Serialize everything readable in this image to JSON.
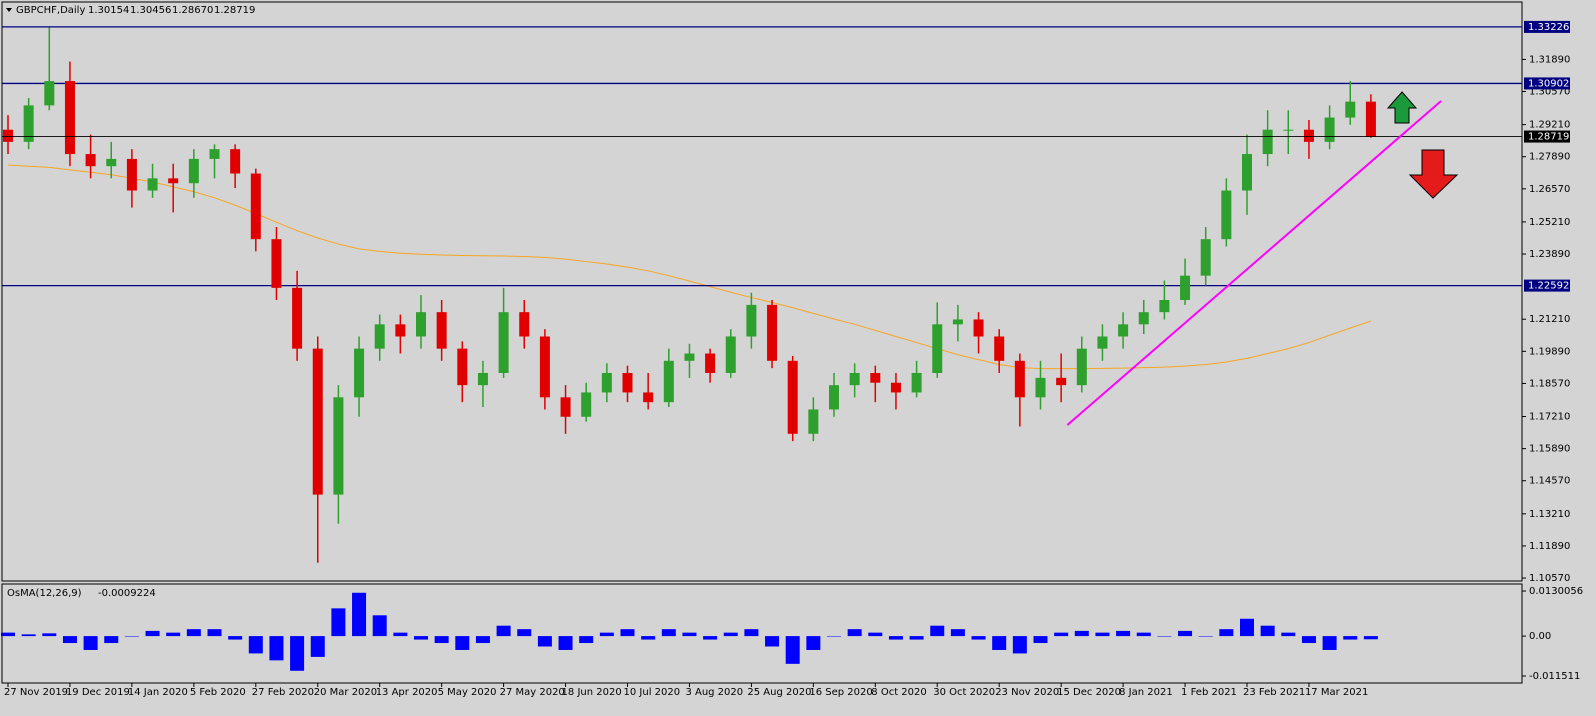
{
  "header": {
    "symbol": "GBPCHF,Daily",
    "ohlc": [
      "1.30154",
      "1.30456",
      "1.28670",
      "1.28719"
    ]
  },
  "chart_data": [
    {
      "type": "candlestick",
      "categories": [
        "27 Nov 2019",
        null,
        null,
        "19 Dec 2019",
        null,
        null,
        "14 Jan 2020",
        null,
        null,
        "5 Feb 2020",
        null,
        null,
        "27 Feb 2020",
        null,
        null,
        "20 Mar 2020",
        null,
        null,
        "13 Apr 2020",
        null,
        null,
        "5 May 2020",
        null,
        null,
        "27 May 2020",
        null,
        null,
        "18 Jun 2020",
        null,
        null,
        "10 Jul 2020",
        null,
        null,
        "3 Aug 2020",
        null,
        null,
        "25 Aug 2020",
        null,
        null,
        "16 Sep 2020",
        null,
        null,
        "8 Oct 2020",
        null,
        null,
        "30 Oct 2020",
        null,
        null,
        "23 Nov 2020",
        null,
        null,
        "15 Dec 2020",
        null,
        null,
        "8 Jan 2021",
        null,
        null,
        "1 Feb 2021",
        null,
        null,
        "23 Feb 2021",
        null,
        null,
        "17 Mar 2021",
        null,
        null,
        null
      ],
      "open": [
        1.29,
        1.285,
        1.3,
        1.31,
        1.28,
        1.275,
        1.278,
        1.265,
        1.27,
        1.268,
        1.278,
        1.282,
        1.272,
        1.245,
        1.225,
        1.2,
        1.14,
        1.18,
        1.2,
        1.21,
        1.205,
        1.215,
        1.2,
        1.185,
        1.19,
        1.215,
        1.205,
        1.18,
        1.172,
        1.182,
        1.19,
        1.182,
        1.178,
        1.195,
        1.198,
        1.19,
        1.205,
        1.218,
        1.195,
        1.165,
        1.175,
        1.185,
        1.19,
        1.186,
        1.182,
        1.19,
        1.21,
        1.212,
        1.205,
        1.195,
        1.18,
        1.188,
        1.185,
        1.2,
        1.205,
        1.21,
        1.215,
        1.22,
        1.23,
        1.245,
        1.265,
        1.28,
        1.29,
        1.29,
        1.285,
        1.295,
        1.30154
      ],
      "high": [
        1.296,
        1.303,
        1.332,
        1.318,
        1.288,
        1.285,
        1.282,
        1.276,
        1.276,
        1.282,
        1.284,
        1.284,
        1.274,
        1.25,
        1.232,
        1.205,
        1.185,
        1.205,
        1.214,
        1.214,
        1.222,
        1.22,
        1.203,
        1.195,
        1.225,
        1.22,
        1.208,
        1.185,
        1.186,
        1.194,
        1.193,
        1.19,
        1.2,
        1.202,
        1.2,
        1.208,
        1.223,
        1.22,
        1.197,
        1.18,
        1.19,
        1.194,
        1.193,
        1.19,
        1.195,
        1.219,
        1.218,
        1.215,
        1.208,
        1.198,
        1.195,
        1.198,
        1.205,
        1.21,
        1.215,
        1.22,
        1.228,
        1.237,
        1.25,
        1.27,
        1.288,
        1.298,
        1.298,
        1.294,
        1.3,
        1.31,
        1.30456
      ],
      "low": [
        1.28,
        1.282,
        1.298,
        1.275,
        1.27,
        1.27,
        1.258,
        1.262,
        1.256,
        1.262,
        1.27,
        1.266,
        1.24,
        1.22,
        1.195,
        1.112,
        1.128,
        1.172,
        1.195,
        1.198,
        1.2,
        1.195,
        1.178,
        1.176,
        1.188,
        1.2,
        1.175,
        1.165,
        1.17,
        1.178,
        1.178,
        1.175,
        1.176,
        1.188,
        1.186,
        1.188,
        1.2,
        1.192,
        1.162,
        1.162,
        1.172,
        1.18,
        1.178,
        1.175,
        1.18,
        1.188,
        1.203,
        1.198,
        1.19,
        1.168,
        1.175,
        1.178,
        1.182,
        1.195,
        1.2,
        1.206,
        1.212,
        1.218,
        1.226,
        1.242,
        1.255,
        1.275,
        1.28,
        1.278,
        1.282,
        1.292,
        1.2867
      ],
      "close": [
        1.285,
        1.3,
        1.31,
        1.28,
        1.275,
        1.278,
        1.265,
        1.27,
        1.268,
        1.278,
        1.282,
        1.272,
        1.245,
        1.225,
        1.2,
        1.14,
        1.18,
        1.2,
        1.21,
        1.205,
        1.215,
        1.2,
        1.185,
        1.19,
        1.215,
        1.205,
        1.18,
        1.172,
        1.182,
        1.19,
        1.182,
        1.178,
        1.195,
        1.198,
        1.19,
        1.205,
        1.218,
        1.195,
        1.165,
        1.175,
        1.185,
        1.19,
        1.186,
        1.182,
        1.19,
        1.21,
        1.212,
        1.205,
        1.195,
        1.18,
        1.188,
        1.185,
        1.2,
        1.205,
        1.21,
        1.215,
        1.22,
        1.23,
        1.245,
        1.265,
        1.28,
        1.29,
        1.29,
        1.285,
        1.295,
        1.30154,
        1.28719
      ],
      "up_color": "#2ea02e",
      "down_color": "#e00000",
      "ylim": [
        1.1049,
        1.3425
      ],
      "yticks": [
        {
          "value": 1.3189,
          "label": "1.31890"
        },
        {
          "value": 1.3057,
          "label": "1.30570"
        },
        {
          "value": 1.2921,
          "label": "1.29210"
        },
        {
          "value": 1.2789,
          "label": "1.27890"
        },
        {
          "value": 1.2657,
          "label": "1.26570"
        },
        {
          "value": 1.2521,
          "label": "1.25210"
        },
        {
          "value": 1.2389,
          "label": "1.23890"
        },
        {
          "value": 1.2121,
          "label": "1.21210"
        },
        {
          "value": 1.1989,
          "label": "1.19890"
        },
        {
          "value": 1.1857,
          "label": "1.18570"
        },
        {
          "value": 1.1721,
          "label": "1.17210"
        },
        {
          "value": 1.1589,
          "label": "1.15890"
        },
        {
          "value": 1.1457,
          "label": "1.14570"
        },
        {
          "value": 1.1321,
          "label": "1.13210"
        },
        {
          "value": 1.1189,
          "label": "1.11890"
        },
        {
          "value": 1.1057,
          "label": "1.10570"
        }
      ],
      "moving_average": {
        "color": "#f5a623",
        "values": [
          1.2755,
          1.275,
          1.2745,
          1.2735,
          1.2725,
          1.2715,
          1.27,
          1.2685,
          1.2665,
          1.2645,
          1.262,
          1.259,
          1.2555,
          1.252,
          1.2485,
          1.2455,
          1.243,
          1.241,
          1.24,
          1.2392,
          1.2388,
          1.2385,
          1.2383,
          1.2382,
          1.2381,
          1.2379,
          1.2375,
          1.2368,
          1.2358,
          1.2348,
          1.2335,
          1.232,
          1.23,
          1.2278,
          1.2255,
          1.2232,
          1.221,
          1.219,
          1.2168,
          1.2145,
          1.2122,
          1.21,
          1.2075,
          1.205,
          1.2025,
          1.2,
          1.1975,
          1.1955,
          1.1935,
          1.1922,
          1.1918,
          1.1918,
          1.1918,
          1.1919,
          1.192,
          1.1922,
          1.1924,
          1.1928,
          1.1935,
          1.1945,
          1.196,
          1.198,
          1.2,
          1.2025,
          1.2055,
          1.2085,
          1.2114
        ]
      },
      "levels": {
        "color": "#000080",
        "values": [
          1.33226,
          1.30902,
          1.22592
        ]
      },
      "current_color": "#000000",
      "trendline": {
        "color": "#ff00ff",
        "x": [
          51.3,
          69.4
        ],
        "y": [
          1.1686,
          1.3018
        ]
      }
    },
    {
      "type": "bar",
      "title": "OsMA(12,26,9)",
      "color": "#0000ff",
      "values": [
        0.001,
        0.0005,
        0.0008,
        -0.002,
        -0.004,
        -0.002,
        0.0,
        0.0015,
        0.001,
        0.002,
        0.002,
        -0.001,
        -0.005,
        -0.007,
        -0.01,
        -0.006,
        0.008,
        0.0125,
        0.006,
        0.001,
        -0.001,
        -0.002,
        -0.004,
        -0.002,
        0.003,
        0.002,
        -0.003,
        -0.004,
        -0.002,
        0.001,
        0.002,
        -0.001,
        0.002,
        0.001,
        -0.001,
        0.001,
        0.002,
        -0.003,
        -0.008,
        -0.004,
        0.0,
        0.002,
        0.001,
        -0.001,
        -0.001,
        0.003,
        0.002,
        -0.001,
        -0.004,
        -0.005,
        -0.002,
        0.001,
        0.0015,
        0.001,
        0.0015,
        0.001,
        0.0,
        0.0015,
        0.0,
        0.002,
        0.005,
        0.003,
        0.001,
        -0.002,
        -0.004,
        -0.001,
        -0.0009224
      ],
      "ylim": [
        -0.01353,
        0.01503
      ],
      "yticks": [
        0.0130056,
        {
          "value": 0,
          "label": "0.00"
        },
        -0.011511
      ]
    }
  ]
}
